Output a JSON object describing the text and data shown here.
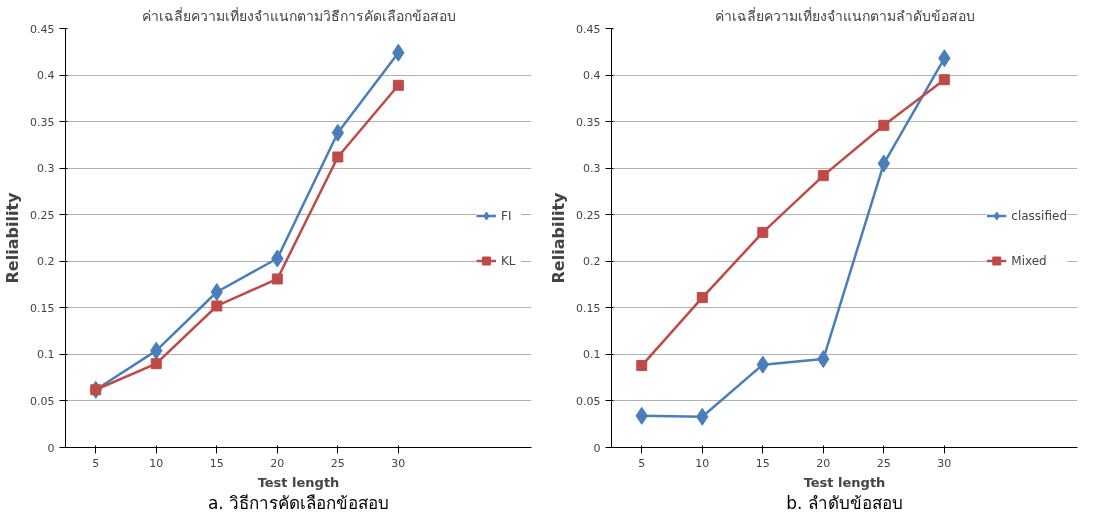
{
  "chart_data": [
    {
      "type": "line",
      "title": "ค่าเฉลี่ยความเที่ยงจำแนกตามวิธีการคัดเลือกข้อสอบ",
      "xlabel": "Test length",
      "ylabel": "Reliability",
      "categories": [
        "5",
        "10",
        "15",
        "20",
        "25",
        "30"
      ],
      "series": [
        {
          "name": "FI",
          "color": "#4a7ebb",
          "marker": "diamond",
          "values": [
            0.062,
            0.104,
            0.167,
            0.203,
            0.338,
            0.424
          ]
        },
        {
          "name": "KL",
          "color": "#be4b48",
          "marker": "square",
          "values": [
            0.062,
            0.09,
            0.152,
            0.181,
            0.312,
            0.389
          ]
        }
      ],
      "ylim": [
        0,
        0.45
      ],
      "yticks": [
        0,
        0.05,
        0.1,
        0.15,
        0.2,
        0.25,
        0.3,
        0.35,
        0.4,
        0.45
      ],
      "grid": "y",
      "legend": "right",
      "annotations": [
        "a. วิธีการคัดเลือกข้อสอบ"
      ]
    },
    {
      "type": "line",
      "title": "ค่าเฉลี่ยความเที่ยงจำแนกตามลำดับข้อสอบ",
      "xlabel": "Test length",
      "ylabel": "Reliability",
      "categories": [
        "5",
        "10",
        "15",
        "20",
        "25",
        "30"
      ],
      "series": [
        {
          "name": "classified",
          "color": "#4a7ebb",
          "marker": "diamond",
          "values": [
            0.034,
            0.033,
            0.089,
            0.095,
            0.305,
            0.418
          ]
        },
        {
          "name": "Mixed",
          "color": "#be4b48",
          "marker": "square",
          "values": [
            0.088,
            0.161,
            0.231,
            0.292,
            0.346,
            0.395
          ]
        }
      ],
      "ylim": [
        0,
        0.45
      ],
      "yticks": [
        0,
        0.05,
        0.1,
        0.15,
        0.2,
        0.25,
        0.3,
        0.35,
        0.4,
        0.45
      ],
      "grid": "y",
      "legend": "right",
      "annotations": [
        "b. ลำดับข้อสอบ"
      ]
    }
  ]
}
